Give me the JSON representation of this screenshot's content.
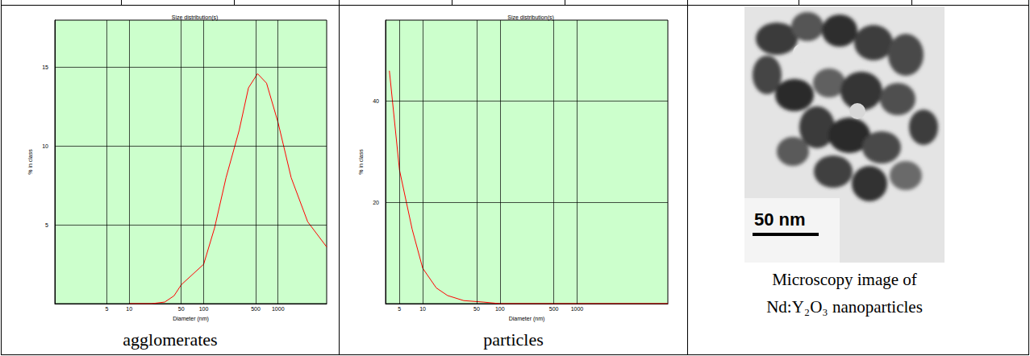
{
  "chart_data": [
    {
      "type": "line",
      "title": "Size distribution(s)",
      "x_label": "Diameter (nm)",
      "y_label": "% in class",
      "caption": "agglomerates",
      "x": [
        10,
        20,
        30,
        40,
        50,
        100,
        140,
        200,
        300,
        400,
        530,
        700,
        1000,
        1500,
        2500,
        4500
      ],
      "values": [
        0,
        0,
        0.1,
        0.5,
        1.2,
        2.5,
        4.8,
        8,
        11,
        13.7,
        14.6,
        14,
        11.5,
        8,
        5.2,
        3.6
      ],
      "color": "#ff0000",
      "xlim": [
        1,
        4500
      ],
      "xticks": [
        5,
        10,
        50,
        100,
        500,
        1000
      ],
      "ylim": [
        0,
        18
      ],
      "yticks": [
        5,
        10,
        15
      ],
      "log": "x",
      "grid": true
    },
    {
      "type": "line",
      "title": "Size distribution(s)",
      "x_label": "Diameter (nm)",
      "y_label": "% in class",
      "caption": "particles",
      "x": [
        3.7,
        5,
        7.3,
        10,
        15,
        21,
        34,
        62,
        100,
        1000,
        15000
      ],
      "values": [
        46,
        26.4,
        14.7,
        7,
        3.1,
        1.6,
        0.6,
        0.3,
        0,
        0,
        0
      ],
      "color": "#ff0000",
      "xlim": [
        3.3,
        15000
      ],
      "xticks": [
        5,
        10,
        50,
        100,
        500,
        1000
      ],
      "ylim": [
        0,
        56
      ],
      "yticks": [
        20,
        40
      ],
      "log": "x",
      "grid": true
    }
  ],
  "image_panel": {
    "scale_bar": "50 nm",
    "caption": "Microscopy image of Nd:Y₂O₃ nanoparticles"
  }
}
